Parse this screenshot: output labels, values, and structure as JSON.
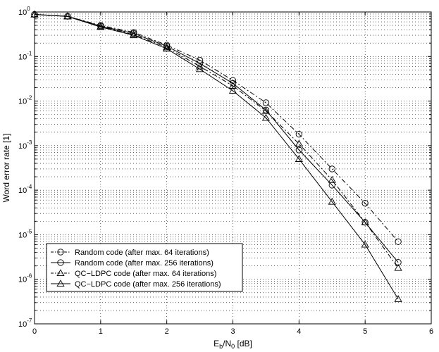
{
  "chart_data": {
    "type": "line",
    "x_scale": "linear",
    "y_scale": "log",
    "xlim": [
      0,
      6
    ],
    "ylim": [
      1e-07,
      1
    ],
    "xticks": [
      0,
      1,
      2,
      3,
      4,
      5,
      6
    ],
    "x_tick_labels": [
      "0",
      "1",
      "2",
      "3",
      "4",
      "5",
      "6"
    ],
    "yticks": [
      1e-07,
      1e-06,
      1e-05,
      0.0001,
      0.001,
      0.01,
      0.1,
      1
    ],
    "y_tick_labels": [
      {
        "base": "10",
        "exp": "-7"
      },
      {
        "base": "10",
        "exp": "-6"
      },
      {
        "base": "10",
        "exp": "-5"
      },
      {
        "base": "10",
        "exp": "-4"
      },
      {
        "base": "10",
        "exp": "-3"
      },
      {
        "base": "10",
        "exp": "-2"
      },
      {
        "base": "10",
        "exp": "-1"
      },
      {
        "base": "10",
        "exp": "0"
      }
    ],
    "xlabel": {
      "E": "E",
      "b": "b",
      "mid": "/N",
      "zero": "0",
      "unit": " [dB]"
    },
    "ylabel": "Word error rate [1]",
    "grid": true,
    "legend_position": "bottom-left",
    "series": [
      {
        "name": "Random code  (after max. 64 iterations)",
        "marker": "circle",
        "line": "dashdot",
        "color": "#000000",
        "x": [
          0,
          0.5,
          1,
          1.5,
          2,
          2.5,
          3,
          3.5,
          4,
          4.5,
          5,
          5.5
        ],
        "y": [
          0.88,
          0.8,
          0.5,
          0.35,
          0.18,
          0.083,
          0.029,
          0.0092,
          0.0018,
          0.0003,
          5.1e-05,
          7e-06
        ]
      },
      {
        "name": "Random code  (after max. 256 iterations)",
        "marker": "circle",
        "line": "solid",
        "color": "#000000",
        "x": [
          0,
          0.5,
          1,
          1.5,
          2,
          2.5,
          3,
          3.5,
          4,
          4.5,
          5,
          5.5
        ],
        "y": [
          0.88,
          0.8,
          0.48,
          0.33,
          0.17,
          0.07,
          0.025,
          0.0063,
          0.0008,
          0.00013,
          1.9e-05,
          2.4e-06
        ]
      },
      {
        "name": "QC−LDPC code (after max. 64 iterations)",
        "marker": "triangle",
        "line": "dashdot",
        "color": "#000000",
        "x": [
          0,
          0.5,
          1,
          1.5,
          2,
          2.5,
          3,
          3.5,
          4,
          4.5,
          5,
          5.5
        ],
        "y": [
          0.88,
          0.8,
          0.47,
          0.31,
          0.16,
          0.06,
          0.022,
          0.006,
          0.0011,
          0.00017,
          1.9e-05,
          1.8e-06
        ]
      },
      {
        "name": "QC−LDPC code (after max. 256 iterations)",
        "marker": "triangle",
        "line": "solid",
        "color": "#000000",
        "x": [
          0,
          0.5,
          1,
          1.5,
          2,
          2.5,
          3,
          3.5,
          4,
          4.5,
          5,
          5.5
        ],
        "y": [
          0.88,
          0.79,
          0.46,
          0.3,
          0.15,
          0.052,
          0.017,
          0.0042,
          0.0005,
          5.5e-05,
          6e-06,
          3.6e-07
        ]
      }
    ]
  }
}
